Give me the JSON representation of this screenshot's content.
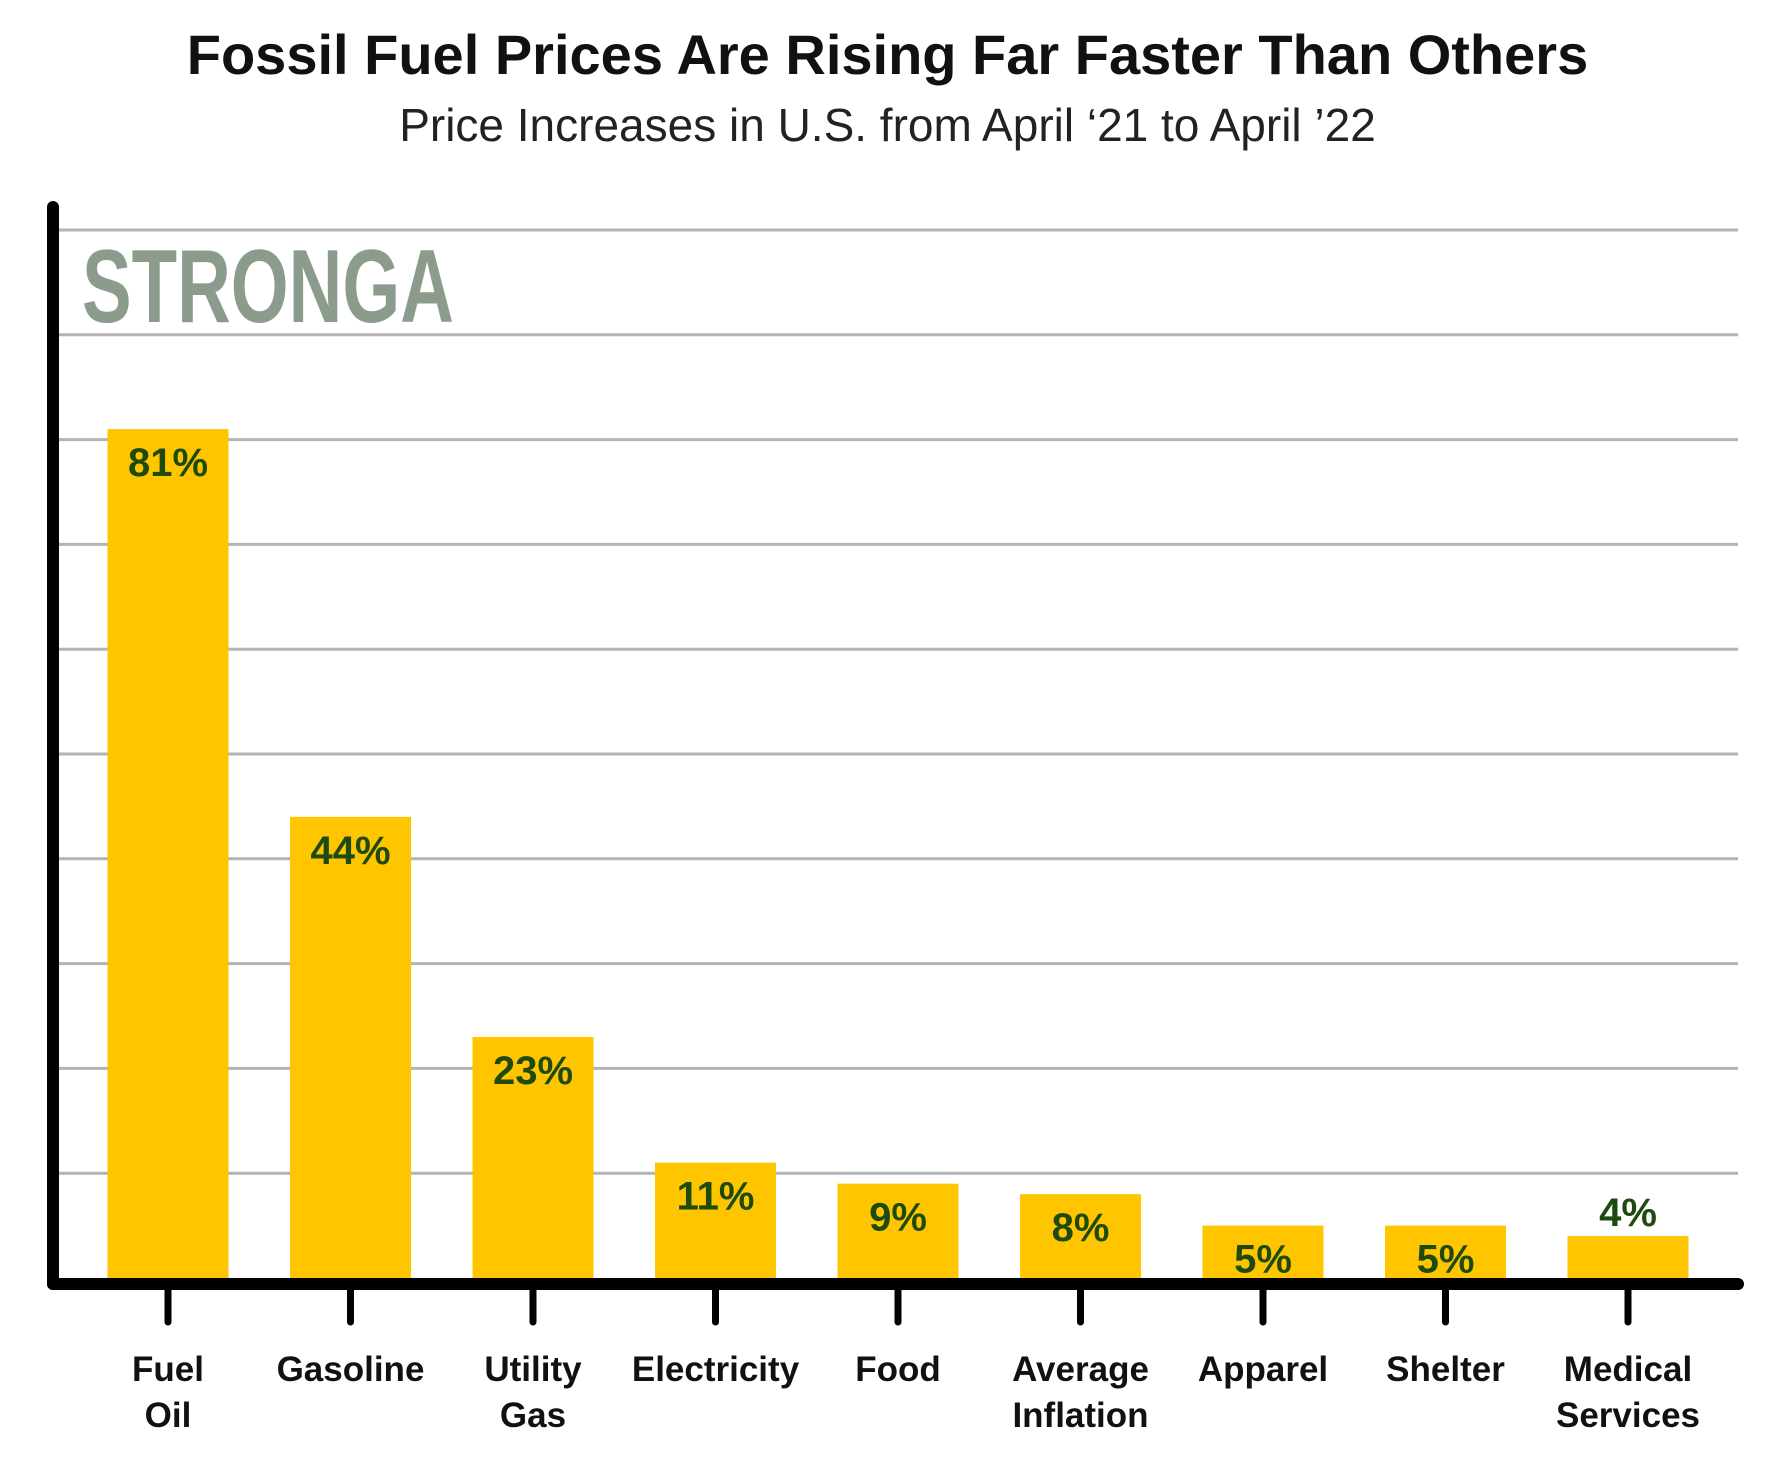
{
  "chart_data": {
    "type": "bar",
    "title": "Fossil Fuel Prices Are Rising Far Faster Than Others",
    "subtitle": "Price Increases in U.S. from April ‘21 to April ’22",
    "categories": [
      [
        "Fuel",
        "Oil"
      ],
      [
        "Gasoline"
      ],
      [
        "Utility",
        "Gas"
      ],
      [
        "Electricity"
      ],
      [
        "Food"
      ],
      [
        "Average",
        "Inflation"
      ],
      [
        "Apparel"
      ],
      [
        "Shelter"
      ],
      [
        "Medical",
        "Services"
      ]
    ],
    "values": [
      81,
      44,
      23,
      11,
      9,
      8,
      5,
      5,
      4
    ],
    "data_labels": [
      "81%",
      "44%",
      "23%",
      "11%",
      "9%",
      "8%",
      "5%",
      "5%",
      "4%"
    ],
    "ylim": [
      0,
      100
    ],
    "grid": true,
    "xlabel": "",
    "ylabel": "",
    "colors": {
      "bar": "#FFC600",
      "data_label": "#1F4A0E",
      "grid": "#B3B3B3",
      "axis": "#000000",
      "watermark": "#8C9C8C"
    }
  },
  "watermark": "STRONGA"
}
